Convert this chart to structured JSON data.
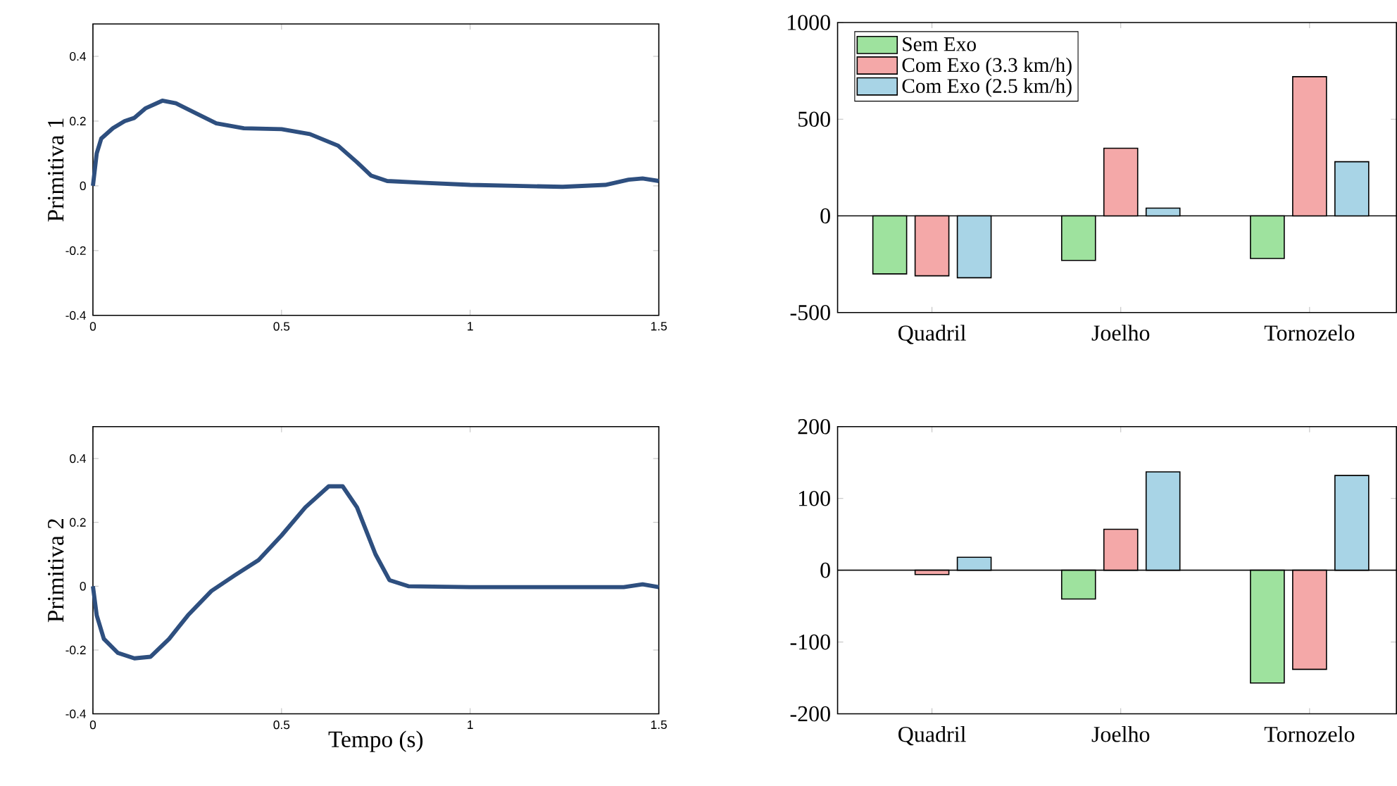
{
  "chart_data": [
    {
      "type": "line",
      "ylabel": "Primitiva 1",
      "xlim": [
        0,
        1.5
      ],
      "ylim": [
        -0.4,
        0.5
      ],
      "xticks": [
        0,
        0.5,
        1,
        1.5
      ],
      "yticks": [
        -0.4,
        -0.2,
        0,
        0.2,
        0.4
      ],
      "series": [
        {
          "color": "#2e4f7f",
          "x": [
            0,
            0.01,
            0.022,
            0.053,
            0.084,
            0.11,
            0.14,
            0.184,
            0.22,
            0.277,
            0.327,
            0.4,
            0.5,
            0.575,
            0.65,
            0.7,
            0.737,
            0.78,
            0.87,
            1.0,
            1.12,
            1.245,
            1.358,
            1.42,
            1.457,
            1.5
          ],
          "values": [
            0,
            0.1,
            0.146,
            0.178,
            0.2,
            0.21,
            0.24,
            0.263,
            0.255,
            0.222,
            0.193,
            0.178,
            0.175,
            0.16,
            0.124,
            0.073,
            0.032,
            0.015,
            0.01,
            0.003,
            0.0,
            -0.003,
            0.003,
            0.019,
            0.023,
            0.015
          ]
        }
      ]
    },
    {
      "type": "line",
      "xlabel": "Tempo (s)",
      "ylabel": "Primitiva 2",
      "xlim": [
        0,
        1.5
      ],
      "ylim": [
        -0.4,
        0.5
      ],
      "xticks": [
        0,
        0.5,
        1,
        1.5
      ],
      "yticks": [
        -0.4,
        -0.2,
        0,
        0.2,
        0.4
      ],
      "series": [
        {
          "color": "#2e4f7f",
          "x": [
            0,
            0.01,
            0.029,
            0.066,
            0.11,
            0.153,
            0.202,
            0.252,
            0.314,
            0.376,
            0.439,
            0.5,
            0.563,
            0.625,
            0.662,
            0.7,
            0.749,
            0.786,
            0.836,
            1.0,
            1.245,
            1.407,
            1.457,
            1.5
          ],
          "values": [
            0,
            -0.091,
            -0.165,
            -0.209,
            -0.226,
            -0.221,
            -0.165,
            -0.091,
            -0.015,
            0.034,
            0.082,
            0.159,
            0.247,
            0.313,
            0.313,
            0.247,
            0.1,
            0.019,
            0,
            -0.003,
            -0.003,
            -0.003,
            0.006,
            -0.003
          ]
        }
      ]
    },
    {
      "type": "bar",
      "categories": [
        "Quadril",
        "Joelho",
        "Tornozelo"
      ],
      "ylim": [
        -500,
        1000
      ],
      "yticks": [
        -500,
        0,
        500,
        1000
      ],
      "legend": "top left",
      "series": [
        {
          "name": "Sem Exo",
          "color": "#9ee29e",
          "values": [
            -300,
            -230,
            -220
          ]
        },
        {
          "name": "Com Exo (3.3 km/h)",
          "color": "#f4a8a8",
          "values": [
            -310,
            350,
            720
          ]
        },
        {
          "name": "Com Exo (2.5 km/h)",
          "color": "#a8d4e6",
          "values": [
            -320,
            40,
            280
          ]
        }
      ]
    },
    {
      "type": "bar",
      "categories": [
        "Quadril",
        "Joelho",
        "Tornozelo"
      ],
      "ylim": [
        -200,
        200
      ],
      "yticks": [
        -200,
        -100,
        0,
        100,
        200
      ],
      "series": [
        {
          "color": "#9ee29e",
          "values": [
            null,
            -40,
            -157
          ]
        },
        {
          "color": "#f4a8a8",
          "values": [
            -6,
            57,
            -138
          ]
        },
        {
          "color": "#a8d4e6",
          "values": [
            18,
            137,
            132
          ]
        }
      ]
    }
  ]
}
